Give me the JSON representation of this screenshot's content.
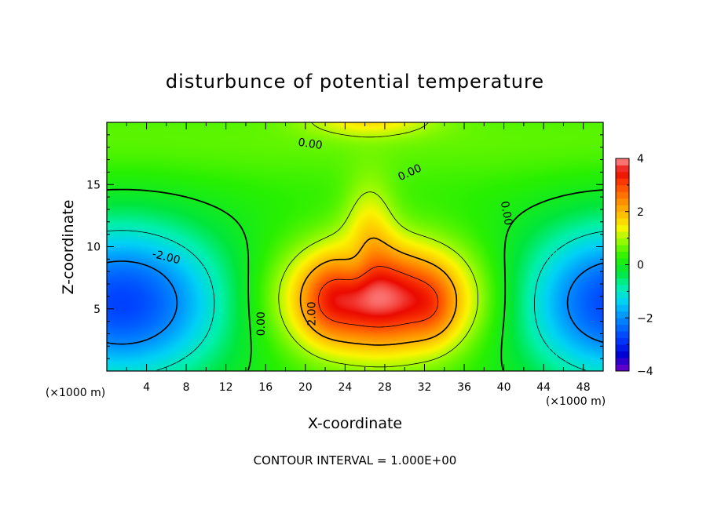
{
  "chart_data": {
    "type": "heatmap",
    "title": "disturbunce of potential temperature",
    "xlabel": "X-coordinate",
    "ylabel": "Z-coordinate",
    "x_unit_label": "(×1000 m)",
    "x_unit_label_right": "(×1000 m)",
    "note": "CONTOUR INTERVAL = 1.000E+00",
    "xlim": [
      0,
      50
    ],
    "ylim": [
      0,
      20
    ],
    "x_ticks": [
      4,
      8,
      12,
      16,
      20,
      24,
      28,
      32,
      36,
      40,
      44,
      48
    ],
    "y_ticks": [
      5,
      10,
      15
    ],
    "colorbar": {
      "min": -4,
      "max": 4,
      "ticks": [
        -4,
        -2,
        0,
        2,
        4
      ]
    },
    "contour_interval": 1.0,
    "contour_labels": [
      {
        "text": "0.00",
        "x": 20.5,
        "z": 18.3,
        "rotation": 8
      },
      {
        "text": "0.00",
        "x": 30.5,
        "z": 16.0,
        "rotation": -25
      },
      {
        "text": "0.00",
        "x": 40.3,
        "z": 12.7,
        "rotation": 80
      },
      {
        "text": "0.00",
        "x": 15.5,
        "z": 3.8,
        "rotation": -90
      },
      {
        "text": "-2.00",
        "x": 6.0,
        "z": 9.2,
        "rotation": 14
      },
      {
        "text": "2.00",
        "x": 20.6,
        "z": 4.6,
        "rotation": -90
      }
    ],
    "field_features": [
      {
        "kind": "cold_core",
        "x": 2.5,
        "z": 5.5,
        "value": -3.0
      },
      {
        "kind": "cold_core",
        "x": 50.5,
        "z": 5.5,
        "value": -3.0
      },
      {
        "kind": "warm_core",
        "x": 22.0,
        "z": 5.5,
        "value": 3.5
      },
      {
        "kind": "warm_core",
        "x": 32.5,
        "z": 5.0,
        "value": 3.7
      },
      {
        "kind": "warm_core",
        "x": 24.5,
        "z": 4.5,
        "value": 3.0
      },
      {
        "kind": "warm_core",
        "x": 26.5,
        "z": 5.5,
        "value": 2.8
      },
      {
        "kind": "warm_core",
        "x": 25.5,
        "z": 19.8,
        "value": 2.0
      }
    ]
  }
}
